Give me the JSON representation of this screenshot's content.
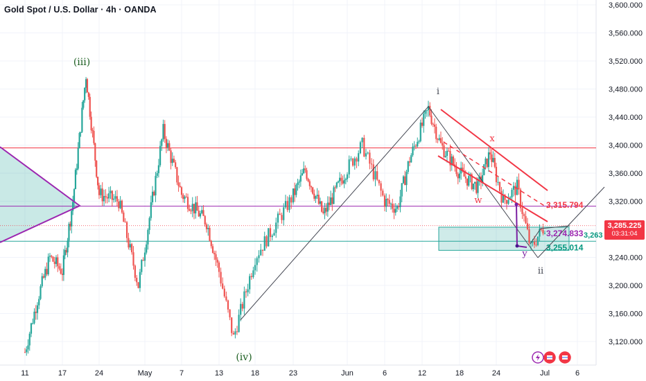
{
  "title": "Gold Spot / U.S. Dollar · 4h · OANDA",
  "current_price": {
    "value": "3,285.225",
    "countdown": "03:31:04"
  },
  "colors": {
    "up": "#26a69a",
    "down": "#ef5350",
    "red_line": "#f23645",
    "purple": "#9c27b0",
    "green_zone": "#26a69a"
  },
  "icons": [
    "flash-icon",
    "flag-icon",
    "flag-icon"
  ],
  "chart_data": {
    "type": "candlestick",
    "ylim": [
      3100,
      3600
    ],
    "y_ticks": [
      "3,120.000",
      "3,160.000",
      "3,200.000",
      "3,240.000",
      "3,280.000",
      "3,320.000",
      "3,360.000",
      "3,400.000",
      "3,440.000",
      "3,480.000",
      "3,520.000",
      "3,560.000",
      "3,600.000"
    ],
    "x_ticks": [
      "11",
      "17",
      "24",
      "May",
      "7",
      "13",
      "18",
      "23",
      "Jun",
      "6",
      "12",
      "18",
      "24",
      "Jul",
      "6"
    ],
    "wave_labels": [
      "(iii)",
      "(iv)",
      "i",
      "ii",
      "w",
      "x",
      "y"
    ],
    "levels": [
      {
        "label": "3,315.794",
        "value": 3315.794,
        "color": "#f23645"
      },
      {
        "label": "3,274.833",
        "value": 3274.833,
        "color": "#9c27b0"
      },
      {
        "label": "3,255.014",
        "value": 3255.014,
        "color": "#089981"
      },
      {
        "label": "3,263",
        "value": 3263,
        "color": "#089981"
      }
    ],
    "horizontal_lines": [
      3396,
      3313,
      3263
    ],
    "zone": {
      "top": 3283,
      "bottom": 3250
    },
    "key_points": [
      {
        "date": "Apr 11",
        "price": 3100
      },
      {
        "date": "Apr 22",
        "price": 3500
      },
      {
        "date": "May 15",
        "price": 3121
      },
      {
        "date": "Jun 13",
        "price": 3452
      },
      {
        "date": "Jun 30",
        "price": 3247
      }
    ]
  }
}
